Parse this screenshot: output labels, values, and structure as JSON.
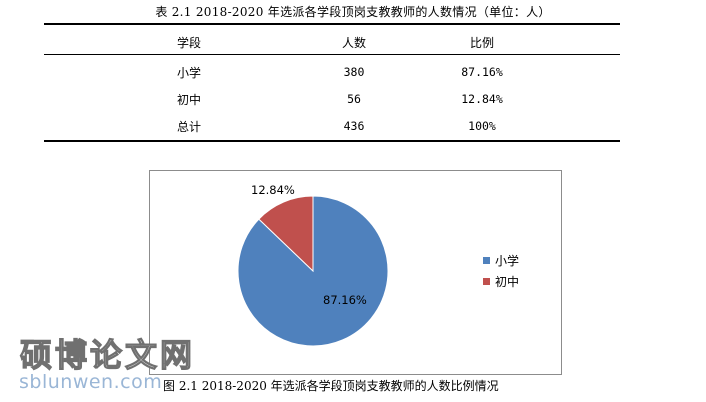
{
  "table": {
    "title": "表 2.1   2018-2020 年选派各学段顶岗支教教师的人数情况（单位：人）",
    "headers": [
      "学段",
      "人数",
      "比例"
    ],
    "rows": [
      {
        "stage": "小学",
        "count": "380",
        "ratio": "87.16%"
      },
      {
        "stage": "初中",
        "count": "56",
        "ratio": "12.84%"
      },
      {
        "stage": "总计",
        "count": "436",
        "ratio": "100%"
      }
    ]
  },
  "chart_data": {
    "type": "pie",
    "categories": [
      "小学",
      "初中"
    ],
    "values": [
      87.16,
      12.84
    ],
    "data_labels": [
      "87.16%",
      "12.84%"
    ],
    "colors": [
      "#4f81bd",
      "#c0504d"
    ],
    "legend": {
      "entries": [
        "小学",
        "初中"
      ],
      "placement": "right"
    },
    "title": ""
  },
  "figure": {
    "caption": "图 2.1   2018-2020 年选派各学段顶岗支教教师的人数比例情况"
  },
  "watermark": {
    "text_cn": "硕博论文网",
    "text_en": "sblunwen.com"
  }
}
